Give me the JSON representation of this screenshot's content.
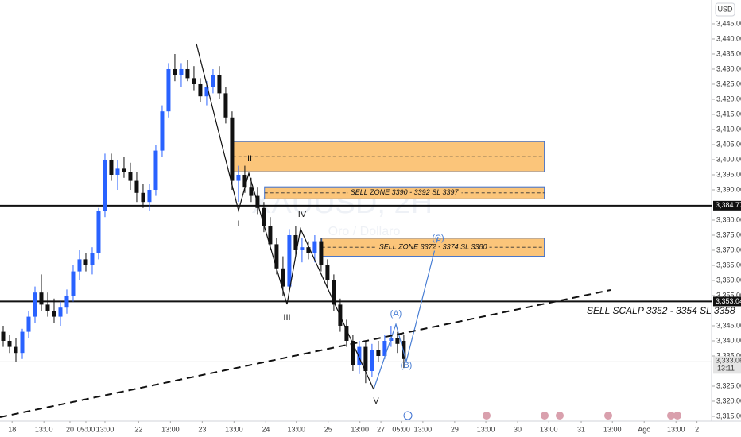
{
  "chart_data": {
    "type": "candlestick",
    "watermark": "XAUUSD, 2H",
    "subtitle": "Oro / Dollaro",
    "currency": "USD",
    "up_color": "#2962ff",
    "down_color": "#111111",
    "xlim": [
      -0.5,
      111.4
    ],
    "ylim": [
      3313.42,
      3452.89
    ],
    "xticks": [
      {
        "value": 1.4,
        "label": "18"
      },
      {
        "value": 6.4,
        "label": "13:00"
      },
      {
        "value": 10.5,
        "label": "20"
      },
      {
        "value": 13,
        "label": "05:00"
      },
      {
        "value": 16,
        "label": "13:00"
      },
      {
        "value": 21.3,
        "label": "22"
      },
      {
        "value": 26.3,
        "label": "13:00"
      },
      {
        "value": 31.3,
        "label": "23"
      },
      {
        "value": 36.3,
        "label": "13:00"
      },
      {
        "value": 41.3,
        "label": "24"
      },
      {
        "value": 46.1,
        "label": "13:00"
      },
      {
        "value": 51.1,
        "label": "25"
      },
      {
        "value": 56.1,
        "label": "13:00"
      },
      {
        "value": 59.4,
        "label": "27"
      },
      {
        "value": 62.6,
        "label": "05:00"
      },
      {
        "value": 66,
        "label": "13:00"
      },
      {
        "value": 71,
        "label": "29"
      },
      {
        "value": 75.9,
        "label": "13:00"
      },
      {
        "value": 80.9,
        "label": "30"
      },
      {
        "value": 85.8,
        "label": "13:00"
      },
      {
        "value": 90.9,
        "label": "31"
      },
      {
        "value": 95.8,
        "label": "13:00"
      },
      {
        "value": 100.8,
        "label": "Ago"
      },
      {
        "value": 105.8,
        "label": "13:00"
      },
      {
        "value": 109.1,
        "label": "2"
      }
    ],
    "yticks": [
      {
        "value": 3445,
        "label": "3,445.000"
      },
      {
        "value": 3440,
        "label": "3,440.000"
      },
      {
        "value": 3435,
        "label": "3,435.000"
      },
      {
        "value": 3430,
        "label": "3,430.000"
      },
      {
        "value": 3425,
        "label": "3,425.000"
      },
      {
        "value": 3420,
        "label": "3,420.000"
      },
      {
        "value": 3415,
        "label": "3,415.000"
      },
      {
        "value": 3410,
        "label": "3,410.000"
      },
      {
        "value": 3405,
        "label": "3,405.000"
      },
      {
        "value": 3400,
        "label": "3,400.000"
      },
      {
        "value": 3395,
        "label": "3,395.000"
      },
      {
        "value": 3390,
        "label": "3,390.000"
      },
      {
        "value": 3380,
        "label": "3,380.000"
      },
      {
        "value": 3375,
        "label": "3,375.000"
      },
      {
        "value": 3370,
        "label": "3,370.000"
      },
      {
        "value": 3365,
        "label": "3,365.000"
      },
      {
        "value": 3360,
        "label": "3,360.000"
      },
      {
        "value": 3355,
        "label": "3,355.000"
      },
      {
        "value": 3345,
        "label": "3,345.000"
      },
      {
        "value": 3340,
        "label": "3,340.000"
      },
      {
        "value": 3335,
        "label": "3,335.000"
      },
      {
        "value": 3325,
        "label": "3,325.000"
      },
      {
        "value": 3320,
        "label": "3,320.000"
      },
      {
        "value": 3315,
        "label": "3,315.000"
      }
    ],
    "candles": [
      [
        3343,
        3345,
        3338,
        3340
      ],
      [
        3340,
        3342,
        3336,
        3338
      ],
      [
        3338,
        3341,
        3333,
        3336
      ],
      [
        3336,
        3344,
        3334,
        3343
      ],
      [
        3343,
        3350,
        3341,
        3348
      ],
      [
        3348,
        3358,
        3346,
        3356
      ],
      [
        3356,
        3362,
        3350,
        3352
      ],
      [
        3352,
        3356,
        3348,
        3350
      ],
      [
        3350,
        3354,
        3346,
        3348
      ],
      [
        3348,
        3353,
        3345,
        3351
      ],
      [
        3351,
        3357,
        3349,
        3355
      ],
      [
        3355,
        3365,
        3353,
        3363
      ],
      [
        3363,
        3370,
        3360,
        3367
      ],
      [
        3367,
        3369,
        3363,
        3365
      ],
      [
        3365,
        3371,
        3362,
        3369
      ],
      [
        3369,
        3384,
        3367,
        3383
      ],
      [
        3383,
        3402,
        3381,
        3400
      ],
      [
        3400,
        3402,
        3393,
        3395
      ],
      [
        3395,
        3400,
        3390,
        3397
      ],
      [
        3397,
        3401,
        3394,
        3396
      ],
      [
        3396,
        3399,
        3390,
        3393
      ],
      [
        3393,
        3396,
        3386,
        3389
      ],
      [
        3389,
        3392,
        3384,
        3386
      ],
      [
        3386,
        3392,
        3383,
        3390
      ],
      [
        3390,
        3405,
        3388,
        3403
      ],
      [
        3403,
        3418,
        3401,
        3416
      ],
      [
        3416,
        3432,
        3414,
        3430
      ],
      [
        3430,
        3435,
        3426,
        3428
      ],
      [
        3428,
        3432,
        3424,
        3430
      ],
      [
        3430,
        3433,
        3426,
        3427
      ],
      [
        3427,
        3431,
        3423,
        3425
      ],
      [
        3425,
        3427,
        3419,
        3421
      ],
      [
        3421,
        3426,
        3418,
        3424
      ],
      [
        3424,
        3430,
        3422,
        3428
      ],
      [
        3428,
        3431,
        3420,
        3422
      ],
      [
        3422,
        3424,
        3412,
        3414
      ],
      [
        3414,
        3416,
        3390,
        3393
      ],
      [
        3393,
        3398,
        3386,
        3395
      ],
      [
        3395,
        3398,
        3389,
        3391
      ],
      [
        3391,
        3394,
        3386,
        3388
      ],
      [
        3388,
        3391,
        3382,
        3384
      ],
      [
        3384,
        3386,
        3376,
        3378
      ],
      [
        3378,
        3381,
        3370,
        3372
      ],
      [
        3372,
        3374,
        3362,
        3364
      ],
      [
        3364,
        3368,
        3355,
        3358
      ],
      [
        3358,
        3377,
        3356,
        3375
      ],
      [
        3375,
        3378,
        3368,
        3370
      ],
      [
        3370,
        3374,
        3366,
        3371
      ],
      [
        3371,
        3373,
        3367,
        3369
      ],
      [
        3369,
        3375,
        3366,
        3373
      ],
      [
        3373,
        3374,
        3363,
        3365
      ],
      [
        3365,
        3367,
        3358,
        3360
      ],
      [
        3360,
        3362,
        3350,
        3352
      ],
      [
        3352,
        3354,
        3343,
        3345
      ],
      [
        3345,
        3347,
        3338,
        3340
      ],
      [
        3340,
        3342,
        3330,
        3332
      ],
      [
        3332,
        3340,
        3329,
        3338
      ],
      [
        3338,
        3340,
        3326,
        3330
      ],
      [
        3330,
        3339,
        3328,
        3337
      ],
      [
        3337,
        3340,
        3333,
        3335
      ],
      [
        3335,
        3342,
        3334,
        3340
      ],
      [
        3340,
        3345,
        3338,
        3341
      ],
      [
        3341,
        3343,
        3336,
        3339
      ],
      [
        3340,
        3342,
        3331,
        3334
      ]
    ],
    "price_lines": [
      {
        "value": 3384.773,
        "label": "3,384.773"
      },
      {
        "value": 3353.046,
        "label": "3,353.046"
      }
    ],
    "last_price": {
      "value": 3333.065,
      "label": "3,333.065",
      "countdown": "13:11"
    },
    "zones": [
      {
        "low": 3396,
        "high": 3406,
        "start": 36.1,
        "end": 85.1
      },
      {
        "low": 3387,
        "high": 3391,
        "start": 41.1,
        "end": 85.1,
        "label": "SELL ZONE 3390 - 3392 SL 3397"
      },
      {
        "low": 3368,
        "high": 3374,
        "start": 50.1,
        "end": 85.1,
        "label": "SELL ZONE 3372 - 3374 SL 3380"
      }
    ],
    "scalp_label": "SELL SCALP 3352 - 3354 SL 3358",
    "wave_labels": [
      "I",
      "II",
      "III",
      "IV",
      "V",
      "(A)",
      "(B)",
      "(C)"
    ]
  }
}
